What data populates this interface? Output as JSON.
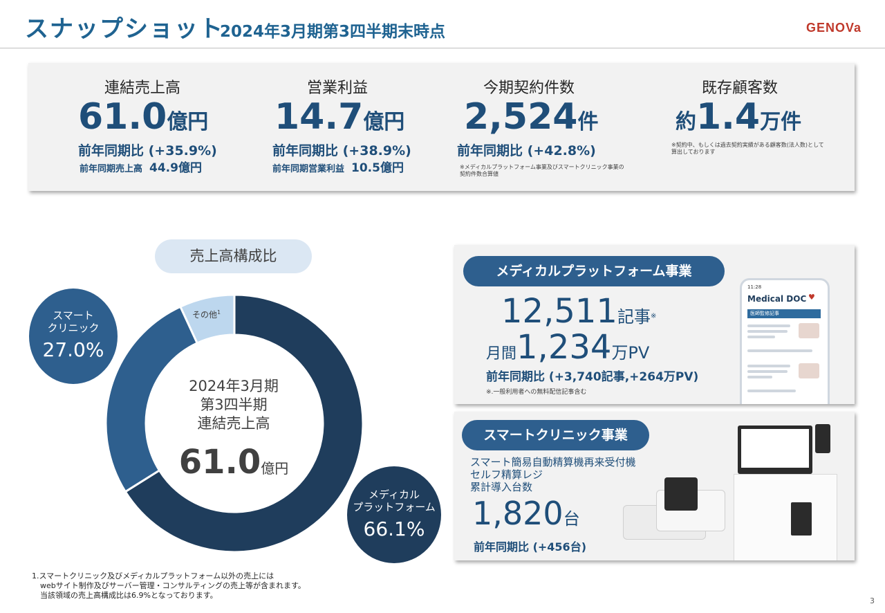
{
  "header": {
    "title": "スナップショット",
    "subtitle": "2024年3月期第3四半期末時点",
    "logo": "GENOVa"
  },
  "kpis": [
    {
      "label": "連結売上高",
      "value": "61.0",
      "unit": "億円",
      "yoy": "前年同期比 (+35.9%)",
      "prev_label": "前年同期売上高",
      "prev_value": "44.9億円"
    },
    {
      "label": "営業利益",
      "value": "14.7",
      "unit": "億円",
      "yoy": "前年同期比 (+38.9%)",
      "prev_label": "前年同期営業利益",
      "prev_value": "10.5億円"
    },
    {
      "label": "今期契約件数",
      "value": "2,524",
      "unit": "件",
      "yoy": "前年同期比 (+42.8%)",
      "note_line1": "※メディカルプラットフォーム事業及びスマートクリニック事業の",
      "note_line2": "契約件数合算値"
    },
    {
      "label": "既存顧客数",
      "prefix": "約",
      "value": "1.4",
      "unit": "万件",
      "note_line1": "※契約中、もしくは過去契約実績がある顧客数(法人数)として",
      "note_line2": "算出しております"
    }
  ],
  "composition": {
    "pill_label": "売上高構成比",
    "center_line1": "2024年3月期",
    "center_line2": "第3四半期",
    "center_line3": "連結売上高",
    "center_value": "61.0",
    "center_unit": "億円",
    "other_label": "その他",
    "other_footnote_mark": "1",
    "clinic_label_line1": "スマート",
    "clinic_label_line2": "クリニック",
    "clinic_pct": "27.0%",
    "medical_label_line1": "メディカル",
    "medical_label_line2": "プラットフォーム",
    "medical_pct": "66.1%",
    "colors": {
      "medical": "#1f3d5c",
      "clinic": "#2e5f8e",
      "other": "#bdd7ee"
    }
  },
  "chart_data": {
    "type": "pie",
    "categories": [
      "メディカルプラットフォーム",
      "スマートクリニック",
      "その他"
    ],
    "values": [
      66.1,
      27.0,
      6.9
    ]
  },
  "footnote": {
    "line1": "1.スマートクリニック及びメディカルプラットフォーム以外の売上には",
    "line2": "webサイト制作及びサーバー管理・コンサルティングの売上等が含まれます。",
    "line3": "当該領域の売上高構成比は6.9%となっております。"
  },
  "medical_platform": {
    "title": "メディカルプラットフォーム事業",
    "articles_value": "12,511",
    "articles_unit": "記事",
    "articles_mark": "※",
    "pv_prefix": "月間",
    "pv_value": "1,234",
    "pv_unit": "万PV",
    "yoy": "前年同期比 (+3,740記事,+264万PV)",
    "note": "※.一般利用者への無料配信記事含む",
    "phone_time": "11:28",
    "phone_app_title": "Medical DOC",
    "phone_section": "医師監修記事"
  },
  "smart_clinic": {
    "title": "スマートクリニック事業",
    "desc_line1": "スマート簡易自動精算機再来受付機",
    "desc_line2": "セルフ精算レジ",
    "desc_line3": "累計導入台数",
    "count_value": "1,820",
    "count_unit": "台",
    "yoy": "前年同期比 (+456台)"
  },
  "page_number": "3"
}
